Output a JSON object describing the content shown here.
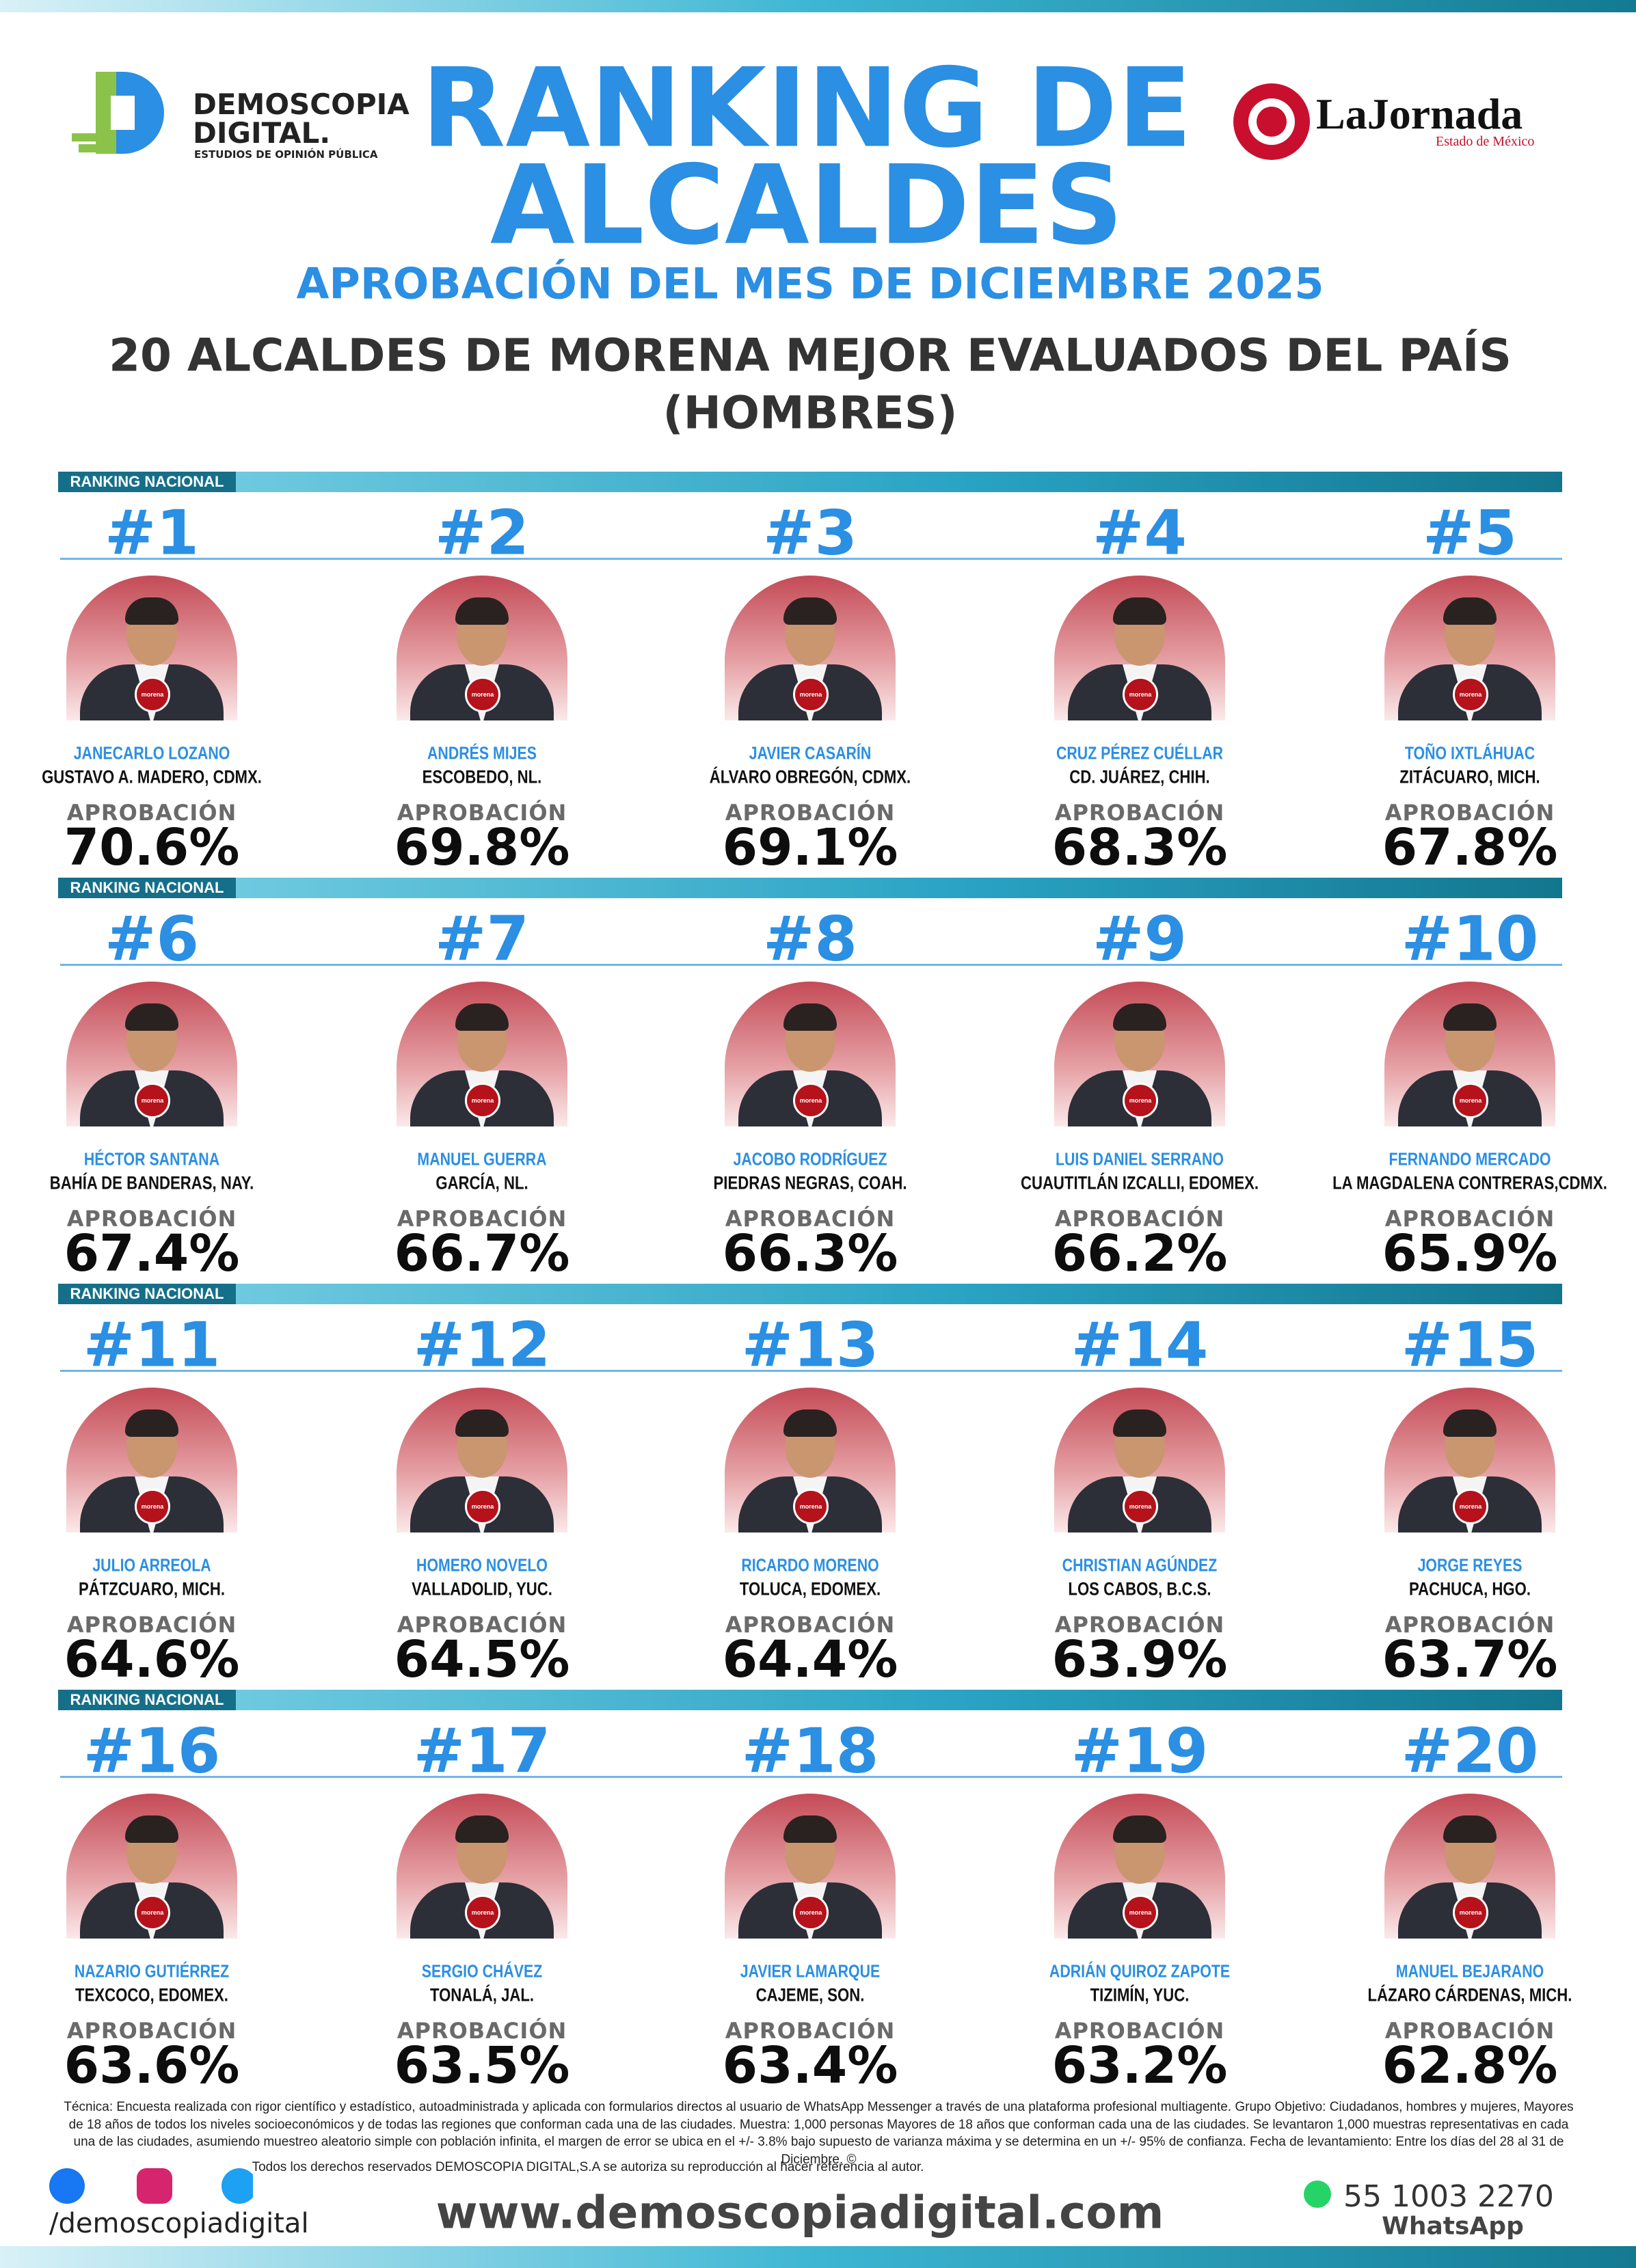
{
  "header": {
    "brand": "DEMOSCOPIA",
    "brand2": "DIGITAL.",
    "brand_sub": "ESTUDIOS DE OPINIÓN PÚBLICA",
    "title_line1": "RANKING DE",
    "title_line2": "ALCALDES",
    "subtitle": "APROBACIÓN DEL MES DE DICIEMBRE 2025",
    "heading": "20 ALCALDES DE MORENA MEJOR EVALUADOS DEL PAÍS",
    "heading2": "(HOMBRES)",
    "partner": "LaJornada",
    "partner_sub": "Estado de México"
  },
  "section_label": "RANKING NACIONAL",
  "approval_label": "APROBACIÓN",
  "badge": "morena",
  "mayors": [
    {
      "rank": "#1",
      "name": "JANECARLO LOZANO",
      "place": "GUSTAVO A. MADERO, CDMX.",
      "approval": "70.6%"
    },
    {
      "rank": "#2",
      "name": "ANDRÉS MIJES",
      "place": "ESCOBEDO, NL.",
      "approval": "69.8%"
    },
    {
      "rank": "#3",
      "name": "JAVIER CASARÍN",
      "place": "ÁLVARO OBREGÓN, CDMX.",
      "approval": "69.1%"
    },
    {
      "rank": "#4",
      "name": "CRUZ PÉREZ CUÉLLAR",
      "place": "CD. JUÁREZ, CHIH.",
      "approval": "68.3%"
    },
    {
      "rank": "#5",
      "name": "TOÑO IXTLÁHUAC",
      "place": "ZITÁCUARO, MICH.",
      "approval": "67.8%"
    },
    {
      "rank": "#6",
      "name": "HÉCTOR SANTANA",
      "place": "BAHÍA DE BANDERAS, NAY.",
      "approval": "67.4%"
    },
    {
      "rank": "#7",
      "name": "MANUEL GUERRA",
      "place": "GARCÍA, NL.",
      "approval": "66.7%"
    },
    {
      "rank": "#8",
      "name": "JACOBO RODRÍGUEZ",
      "place": "PIEDRAS NEGRAS, COAH.",
      "approval": "66.3%"
    },
    {
      "rank": "#9",
      "name": "LUIS DANIEL SERRANO",
      "place": "CUAUTITLÁN IZCALLI, EDOMEX.",
      "approval": "66.2%"
    },
    {
      "rank": "#10",
      "name": "FERNANDO MERCADO",
      "place": "LA MAGDALENA CONTRERAS,CDMX.",
      "approval": "65.9%"
    },
    {
      "rank": "#11",
      "name": "JULIO ARREOLA",
      "place": "PÁTZCUARO, MICH.",
      "approval": "64.6%"
    },
    {
      "rank": "#12",
      "name": "HOMERO NOVELO",
      "place": "VALLADOLID, YUC.",
      "approval": "64.5%"
    },
    {
      "rank": "#13",
      "name": "RICARDO MORENO",
      "place": "TOLUCA, EDOMEX.",
      "approval": "64.4%"
    },
    {
      "rank": "#14",
      "name": "CHRISTIAN AGÚNDEZ",
      "place": "LOS CABOS, B.C.S.",
      "approval": "63.9%"
    },
    {
      "rank": "#15",
      "name": "JORGE REYES",
      "place": "PACHUCA, HGO.",
      "approval": "63.7%"
    },
    {
      "rank": "#16",
      "name": "NAZARIO GUTIÉRREZ",
      "place": "TEXCOCO, EDOMEX.",
      "approval": "63.6%"
    },
    {
      "rank": "#17",
      "name": "SERGIO CHÁVEZ",
      "place": "TONALÁ, JAL.",
      "approval": "63.5%"
    },
    {
      "rank": "#18",
      "name": "JAVIER LAMARQUE",
      "place": "CAJEME, SON.",
      "approval": "63.4%"
    },
    {
      "rank": "#19",
      "name": "ADRIÁN QUIROZ ZAPOTE",
      "place": "TIZIMÍN, YUC.",
      "approval": "63.2%"
    },
    {
      "rank": "#20",
      "name": "MANUEL BEJARANO",
      "place": "LÁZARO CÁRDENAS, MICH.",
      "approval": "62.8%"
    }
  ],
  "footer": {
    "methodology": "Técnica: Encuesta realizada con rigor científico y estadístico, autoadministrada y aplicada con formularios directos al usuario de WhatsApp Messenger a través de una plataforma profesional multiagente. Grupo Objetivo: Ciudadanos, hombres y mujeres, Mayores de 18 años de todos los niveles socioeconómicos y de todas las regiones que conforman cada una de las ciudades. Muestra: 1,000 personas Mayores de 18 años que conforman cada una de las ciudades. Se levantaron 1,000 muestras representativas en cada una de las ciudades, asumiendo muestreo aleatorio simple con población infinita, el margen de error se ubica en el +/- 3.8% bajo supuesto de varianza máxima y se determina en un +/- 95% de confianza. Fecha de levantamiento: Entre los días del 28 al 31 de Diciembre. ©",
    "rights": "Todos los derechos reservados DEMOSCOPIA DIGITAL,S.A se autoriza su reproducción al hacer referencia al autor.",
    "handle": "/demoscopiadigital",
    "website": "www.demoscopiadigital.com",
    "phone": "55 1003 2270",
    "phone_label": "WhatsApp"
  }
}
